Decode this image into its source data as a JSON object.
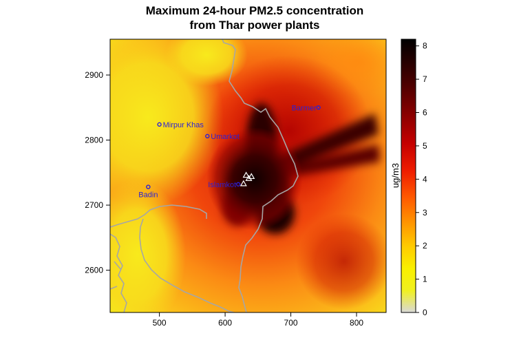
{
  "title_line1": "Maximum 24-hour PM2.5 concentration",
  "title_line2": "from Thar power plants",
  "map": {
    "xlim": [
      425,
      845
    ],
    "ylim": [
      2535,
      2955
    ],
    "x_ticks": [
      "500",
      "600",
      "700",
      "800"
    ],
    "y_ticks": [
      "2900",
      "2800",
      "2700",
      "2600"
    ],
    "cities": [
      {
        "name": "Mirpur Khas",
        "x": 500,
        "y": 2824
      },
      {
        "name": "Umarkot",
        "x": 573,
        "y": 2806
      },
      {
        "name": "Badin",
        "x": 483,
        "y": 2728
      },
      {
        "name": "Islamkot",
        "x": 620,
        "y": 2732
      },
      {
        "name": "Barmer",
        "x": 742,
        "y": 2850
      }
    ],
    "plants": [
      {
        "x": 632,
        "y": 2746
      },
      {
        "x": 640,
        "y": 2744
      },
      {
        "x": 636,
        "y": 2741
      },
      {
        "x": 628,
        "y": 2733
      }
    ],
    "field_colors": {
      "low": "#f5e81c",
      "mid": "#fb7a12",
      "high": "#d41507",
      "max": "#1a0000"
    }
  },
  "colorbar": {
    "label": "ug/m3",
    "range": [
      0,
      8.2
    ],
    "ticks": [
      "0",
      "1",
      "2",
      "3",
      "4",
      "5",
      "6",
      "7",
      "8"
    ],
    "colors": [
      "#d9d9d9",
      "#f7f700",
      "#ffcc00",
      "#ff9900",
      "#ff6600",
      "#ff2200",
      "#cc0000",
      "#880000",
      "#440000",
      "#000000"
    ]
  }
}
